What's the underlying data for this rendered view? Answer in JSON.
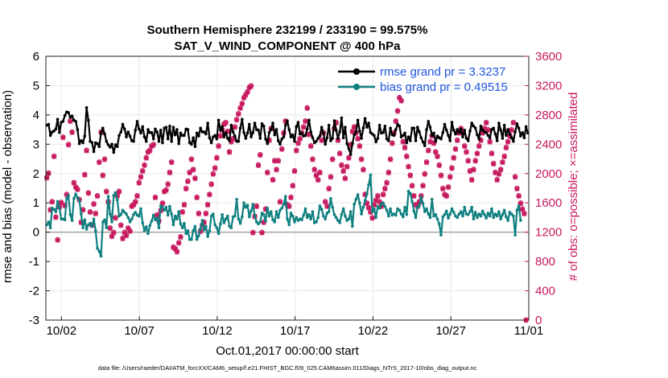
{
  "chart_data": {
    "type": "line",
    "title": "Southern Hemisphere 232199 / 233190 = 99.575%",
    "subtitle": "SAT_V_WIND_COMPONENT @ 400 hPa",
    "xlabel": "Oct.01,2017 00:00:00 start",
    "ylabel_left": "rmse and bias (model - observation)",
    "ylabel_right": "# of obs: o=possible; ×=assimilated",
    "footnote": "data file: /Users/raeder/DAI/ATM_forcXX/CAM6_setup/f.e21.FHIST_BGC.f09_025.CAM6assim.011/Diags_NTrS_2017-10/obs_diag_output.nc",
    "xlim": [
      0,
      31
    ],
    "ylim_left": [
      -3,
      6
    ],
    "ylim_right": [
      0,
      3600
    ],
    "x_ticks": [
      1,
      6,
      11,
      16,
      21,
      26,
      31
    ],
    "x_tick_labels": [
      "10/02",
      "10/07",
      "10/12",
      "10/17",
      "10/22",
      "10/27",
      "11/01"
    ],
    "y_ticks_left": [
      -3,
      -2,
      -1,
      0,
      1,
      2,
      3,
      4,
      5,
      6
    ],
    "y_ticks_right": [
      0,
      400,
      800,
      1200,
      1600,
      2000,
      2400,
      2800,
      3200,
      3600
    ],
    "zero_line": 0,
    "grid": true,
    "legend": [
      {
        "label": "rmse grand pr = 3.3237",
        "color": "#000000"
      },
      {
        "label": "bias grand pr = 0.49515",
        "color": "#0f7f7f"
      }
    ],
    "colors": {
      "rmse": "#000000",
      "bias": "#0f7f7f",
      "obs": "#c7185e",
      "zero": "#aaaaaa",
      "legend_text": "#1f55e0"
    },
    "series": [
      {
        "name": "rmse",
        "axis": "left",
        "values": [
          3.65,
          3.68,
          3.3,
          3.42,
          3.45,
          3.52,
          3.85,
          3.4,
          3.75,
          3.78,
          3.98,
          4.1,
          4.08,
          3.92,
          3.96,
          3.82,
          3.78,
          3.5,
          3.02,
          3.12,
          3.05,
          3.28,
          4.25,
          3.82,
          3.1,
          3.06,
          2.75,
          3.05,
          3.02,
          2.92,
          3.38,
          3.55,
          3.35,
          3.1,
          2.98,
          2.9,
          3.0,
          2.72,
          2.98,
          2.92,
          3.3,
          3.42,
          3.68,
          3.52,
          3.25,
          3.42,
          3.28,
          3.12,
          3.1,
          3.48,
          3.78,
          3.52,
          3.38,
          3.6,
          3.25,
          3.1,
          3.5,
          3.4,
          3.4,
          3.18,
          3.52,
          3.42,
          3.1,
          3.48,
          3.05,
          3.55,
          3.58,
          3.18,
          3.62,
          3.1,
          3.58,
          3.32,
          3.5,
          3.02,
          3.38,
          3.3,
          3.3,
          3.52,
          3.5,
          3.05,
          3.0,
          3.22,
          2.92,
          3.38,
          3.28,
          3.55,
          3.42,
          3.42,
          3.35,
          3.72,
          3.22,
          3.05,
          3.25,
          3.3,
          3.18,
          3.82,
          3.48,
          3.6,
          3.25,
          3.4,
          3.2,
          3.12,
          3.65,
          3.42,
          3.28,
          3.1,
          3.1,
          3.55,
          3.85,
          3.4,
          3.2,
          3.38,
          3.68,
          3.25,
          3.4,
          3.72,
          3.5,
          3.48,
          3.2,
          3.7,
          3.62,
          3.18,
          3.02,
          3.4,
          3.5,
          3.72,
          3.32,
          3.5,
          3.12,
          3.0,
          3.18,
          3.25,
          3.65,
          3.8,
          3.5,
          3.25,
          3.32,
          3.1,
          3.6,
          3.75,
          3.35,
          3.38,
          3.28,
          3.3,
          3.52,
          3.82,
          3.42,
          3.22,
          3.05,
          3.1,
          3.2,
          3.28,
          3.58,
          3.38,
          3.0,
          3.22,
          3.65,
          3.12,
          3.2,
          3.8,
          3.48,
          3.2,
          3.42,
          3.9,
          3.22,
          3.58,
          3.02,
          2.85,
          2.65,
          3.02,
          3.32,
          3.42,
          3.82,
          3.45,
          3.2,
          3.55,
          3.88,
          3.58,
          3.72,
          3.4,
          3.35,
          3.3,
          3.08,
          3.2,
          3.65,
          3.38,
          3.4,
          3.62,
          3.18,
          3.12,
          3.55,
          3.32,
          3.3,
          3.5,
          3.68,
          3.62,
          3.25,
          3.3,
          3.38,
          3.05,
          3.25,
          3.12,
          3.55,
          3.55,
          3.12,
          3.58,
          3.42,
          3.22,
          3.08,
          2.95,
          3.5,
          3.78,
          3.58,
          3.3,
          3.38,
          3.1,
          3.28,
          3.22,
          3.18,
          3.4,
          3.68,
          3.48,
          3.3,
          3.12,
          3.75,
          3.48,
          3.35,
          3.5,
          3.4,
          3.52,
          3.25,
          3.48,
          3.2,
          3.12,
          3.45,
          3.72,
          3.62,
          3.55,
          3.32,
          3.18,
          3.62,
          3.48,
          3.42,
          3.4,
          3.3,
          3.22,
          3.5,
          3.55,
          3.35,
          3.12,
          3.72,
          3.48,
          3.2,
          3.65,
          3.3,
          3.5,
          3.35,
          3.22,
          3.1,
          3.42,
          3.7,
          3.55,
          3.28,
          3.4,
          3.22,
          3.6,
          3.38
        ]
      },
      {
        "name": "bias",
        "axis": "left",
        "values": [
          0.25,
          0.35,
          0.15,
          0.82,
          0.78,
          0.7,
          1.05,
          0.82,
          0.45,
          0.45,
          0.42,
          1.15,
          1.25,
          0.6,
          0.4,
          1.15,
          1.3,
          1.18,
          1.08,
          0.62,
          0.15,
          0.42,
          0.1,
          0.25,
          0.3,
          0.2,
          0.45,
          0.05,
          -0.55,
          -0.65,
          -0.82,
          0.35,
          0.42,
          0.15,
          1.22,
          0.62,
          0.35,
          1.25,
          1.35,
          1.1,
          0.55,
          0.6,
          0.75,
          0.68,
          0.62,
          0.5,
          0.35,
          0.45,
          0.6,
          0.68,
          0.58,
          0.55,
          0.8,
          0.32,
          0.05,
          0.18,
          -0.05,
          0.22,
          0.38,
          0.58,
          0.42,
          0.48,
          0.15,
          0.9,
          0.85,
          0.75,
          0.85,
          0.58,
          0.88,
          0.62,
          0.25,
          0.55,
          0.45,
          0.7,
          0.28,
          0.15,
          0.3,
          -0.05,
          0.05,
          -0.25,
          -0.25,
          0.05,
          0.2,
          -0.25,
          -0.12,
          0.12,
          0.4,
          0.08,
          0.2,
          -0.15,
          0.05,
          0.55,
          0.62,
          0.25,
          0.15,
          -0.05,
          0.28,
          0.6,
          0.32,
          0.45,
          0.55,
          0.2,
          0.15,
          0.52,
          0.55,
          1.12,
          0.45,
          0.3,
          0.52,
          1.0,
          0.85,
          0.92,
          0.52,
          0.72,
          0.95,
          0.55,
          0.35,
          0.28,
          0.35,
          0.65,
          0.6,
          0.38,
          0.82,
          0.55,
          0.7,
          0.42,
          0.35,
          0.7,
          0.5,
          0.75,
          0.82,
          0.95,
          1.22,
          0.45,
          0.25,
          0.65,
          0.55,
          0.35,
          0.5,
          0.4,
          0.45,
          0.42,
          0.58,
          0.8,
          0.5,
          0.6,
          0.45,
          0.7,
          0.32,
          0.35,
          0.5,
          0.9,
          0.78,
          0.55,
          0.45,
          0.65,
          0.7,
          1.15,
          0.85,
          0.6,
          0.5,
          0.4,
          0.32,
          0.6,
          0.8,
          0.55,
          0.4,
          0.45,
          0.7,
          0.2,
          0.95,
          1.12,
          1.28,
          1.0,
          0.62,
          0.85,
          1.08,
          1.3,
          1.62,
          1.95,
          0.7,
          0.8,
          0.5,
          0.88,
          0.82,
          0.95,
          1.0,
          0.88,
          0.75,
          0.55,
          0.8,
          0.58,
          0.62,
          0.58,
          0.8,
          0.75,
          0.62,
          0.52,
          0.85,
          0.6,
          1.4,
          1.32,
          1.05,
          0.72,
          0.5,
          0.85,
          0.9,
          1.2,
          0.98,
          0.7,
          0.8,
          0.62,
          0.5,
          1.12,
          0.55,
          0.6,
          0.45,
          0.28,
          -0.1,
          0.52,
          0.6,
          0.72,
          0.48,
          0.62,
          0.8,
          0.68,
          0.55,
          0.5,
          0.62,
          0.7,
          0.55,
          0.85,
          0.62,
          0.6,
          0.7,
          0.85,
          0.45,
          0.68,
          0.5,
          0.62,
          0.55,
          0.72,
          0.6,
          0.48,
          0.65,
          0.55,
          0.8,
          0.5,
          0.62,
          0.55,
          0.7,
          0.45,
          0.6,
          0.75,
          0.52,
          0.4,
          0.68,
          0.62,
          0.55,
          -0.1,
          0.75,
          0.9,
          0.4
        ]
      },
      {
        "name": "obs_possible",
        "axis": "right",
        "values": [
          1950,
          2010,
          1510,
          1620,
          2240,
          1410,
          1100,
          1550,
          1610,
          2500,
          1570,
          1720,
          2400,
          2720,
          2570,
          1880,
          1820,
          1790,
          1650,
          1340,
          1510,
          1990,
          2320,
          1740,
          1480,
          1300,
          1590,
          1460,
          1700,
          2160,
          2570,
          1980,
          2200,
          1760,
          1620,
          1260,
          1150,
          1200,
          1400,
          1700,
          1760,
          1300,
          1120,
          1200,
          1160,
          1260,
          1220,
          1560,
          1580,
          1620,
          1700,
          1880,
          1960,
          2040,
          2120,
          2220,
          2300,
          2320,
          2380,
          2400,
          1680,
          1440,
          1360,
          1500,
          1600,
          1760,
          1780,
          1860,
          2020,
          2160,
          1000,
          980,
          940,
          1060,
          1140,
          1480,
          1580,
          1800,
          1900,
          2020,
          2200,
          2060,
          1940,
          1680,
          1460,
          1220,
          1300,
          1340,
          1460,
          1580,
          1720,
          1860,
          2000,
          2080,
          2220,
          2380,
          2520,
          2600,
          2680,
          2700,
          2580,
          2300,
          2440,
          2480,
          2640,
          2740,
          2820,
          2900,
          2960,
          3040,
          3080,
          3120,
          3180,
          3200,
          1200,
          1420,
          1560,
          2120,
          2260,
          1200,
          1340,
          1520,
          2020,
          2460,
          2620,
          1920,
          2180,
          2060,
          2180,
          1620,
          2340,
          2560,
          2720,
          1580,
          1560,
          1680,
          1840,
          2040,
          2320,
          2420,
          2480,
          2560,
          2640,
          2720,
          2900,
          2540,
          2380,
          2200,
          2060,
          1980,
          1920,
          2020,
          2460,
          2560,
          1620,
          1560,
          1800,
          1960,
          2200,
          2620,
          2700,
          2460,
          2280,
          2120,
          2040,
          1940,
          2100,
          2220,
          2400,
          2580,
          2640,
          2560,
          2480,
          2380,
          2200,
          2060,
          1720,
          1600,
          1540,
          1480,
          1400,
          1580,
          1640,
          1700,
          1620,
          1560,
          1720,
          1800,
          1880,
          2020,
          2200,
          2420,
          2560,
          2720,
          2860,
          3040,
          3000,
          2440,
          2360,
          2240,
          2100,
          1980,
          1840,
          1700,
          1580,
          1560,
          1620,
          1700,
          1840,
          2000,
          2160,
          2320,
          2440,
          2520,
          2420,
          2300,
          2240,
          2120,
          1980,
          1800,
          1720,
          1700,
          1820,
          1960,
          2080,
          2220,
          2340,
          2460,
          2560,
          2620,
          2560,
          2380,
          2300,
          2180,
          2040,
          1920,
          2060,
          2180,
          2280,
          2380,
          2460,
          2560,
          2620,
          2700,
          2600,
          2440,
          2280,
          2140,
          2020,
          1920,
          2000,
          2060,
          2160,
          2240,
          2360,
          2440,
          2520,
          2600,
          2700,
          1960,
          1800,
          1700,
          1600,
          1520,
          1460,
          0
        ]
      },
      {
        "name": "obs_assimilated",
        "axis": "right",
        "values": [
          1940,
          2000,
          1500,
          1610,
          2230,
          1400,
          1090,
          1540,
          1600,
          2490,
          1560,
          1710,
          2390,
          2710,
          2560,
          1870,
          1810,
          1780,
          1640,
          1330,
          1500,
          1980,
          2310,
          1730,
          1470,
          1290,
          1580,
          1450,
          1690,
          2150,
          2560,
          1970,
          2190,
          1750,
          1610,
          1250,
          1140,
          1190,
          1390,
          1690,
          1750,
          1290,
          1110,
          1190,
          1150,
          1250,
          1210,
          1550,
          1570,
          1610,
          1690,
          1870,
          1950,
          2030,
          2110,
          2210,
          2290,
          2310,
          2370,
          2390,
          1670,
          1430,
          1350,
          1490,
          1590,
          1750,
          1770,
          1850,
          2010,
          2150,
          990,
          970,
          930,
          1050,
          1130,
          1470,
          1570,
          1790,
          1890,
          2010,
          2190,
          2050,
          1930,
          1670,
          1450,
          1210,
          1290,
          1330,
          1450,
          1570,
          1710,
          1850,
          1990,
          2070,
          2210,
          2370,
          2510,
          2590,
          2670,
          2690,
          2570,
          2290,
          2430,
          2470,
          2630,
          2730,
          2810,
          2890,
          2950,
          3030,
          3070,
          3110,
          3170,
          3190,
          1190,
          1410,
          1550,
          2110,
          2250,
          1190,
          1330,
          1510,
          2010,
          2450,
          2610,
          1910,
          2170,
          2050,
          2170,
          1610,
          2330,
          2550,
          2710,
          1570,
          1550,
          1670,
          1830,
          2030,
          2310,
          2410,
          2470,
          2550,
          2630,
          2710,
          2890,
          2530,
          2370,
          2190,
          2050,
          1970,
          1910,
          2010,
          2450,
          2550,
          1610,
          1550,
          1790,
          1950,
          2190,
          2610,
          2690,
          2450,
          2270,
          2110,
          2030,
          1930,
          2090,
          2210,
          2390,
          2570,
          2630,
          2550,
          2470,
          2370,
          2190,
          2050,
          1710,
          1590,
          1530,
          1470,
          1390,
          1570,
          1630,
          1690,
          1610,
          1550,
          1710,
          1790,
          1870,
          2010,
          2190,
          2410,
          2550,
          2710,
          2850,
          3030,
          2990,
          2430,
          2350,
          2230,
          2090,
          1970,
          1830,
          1690,
          1570,
          1550,
          1610,
          1690,
          1830,
          1990,
          2150,
          2310,
          2430,
          2510,
          2410,
          2290,
          2230,
          2110,
          1970,
          1790,
          1710,
          1690,
          1810,
          1950,
          2070,
          2210,
          2330,
          2450,
          2550,
          2610,
          2550,
          2370,
          2290,
          2170,
          2030,
          1910,
          2050,
          2170,
          2270,
          2370,
          2450,
          2550,
          2610,
          2690,
          2590,
          2430,
          2270,
          2130,
          2010,
          1910,
          1990,
          2050,
          2150,
          2230,
          2350,
          2430,
          2510,
          2590,
          2690,
          1950,
          1790,
          1690,
          1590,
          1510,
          1450,
          0
        ]
      }
    ]
  }
}
